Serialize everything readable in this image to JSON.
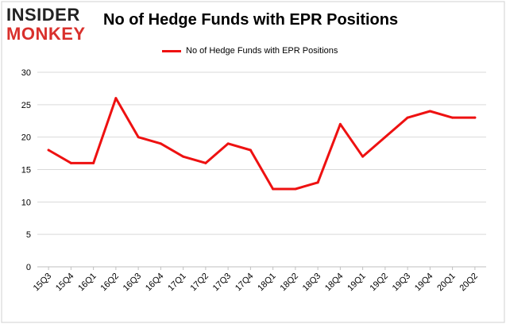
{
  "header": {
    "logo_line1": "INSIDER",
    "logo_line2": "MONKEY",
    "title": "No of Hedge Funds with EPR Positions"
  },
  "colors": {
    "line": "#ee1111",
    "logo_dark": "#222222",
    "logo_red": "#d9302c",
    "grid": "#d9d9d9",
    "frame": "#d0d0d0"
  },
  "chart_data": {
    "type": "line",
    "title": "No of Hedge Funds with EPR Positions",
    "xlabel": "",
    "ylabel": "",
    "categories": [
      "15Q3",
      "15Q4",
      "16Q1",
      "16Q2",
      "16Q3",
      "16Q4",
      "17Q1",
      "17Q2",
      "17Q3",
      "17Q4",
      "18Q1",
      "18Q2",
      "18Q3",
      "18Q4",
      "19Q1",
      "19Q2",
      "19Q3",
      "19Q4",
      "20Q1",
      "20Q2"
    ],
    "series": [
      {
        "name": "No of Hedge Funds with EPR Positions",
        "values": [
          18,
          16,
          16,
          26,
          20,
          19,
          17,
          16,
          19,
          18,
          12,
          12,
          13,
          22,
          17,
          20,
          23,
          24,
          23,
          23
        ]
      }
    ],
    "ylim": [
      0,
      30
    ],
    "yticks": [
      0,
      5,
      10,
      15,
      20,
      25,
      30
    ],
    "grid": true,
    "legend_position": "top-center"
  }
}
